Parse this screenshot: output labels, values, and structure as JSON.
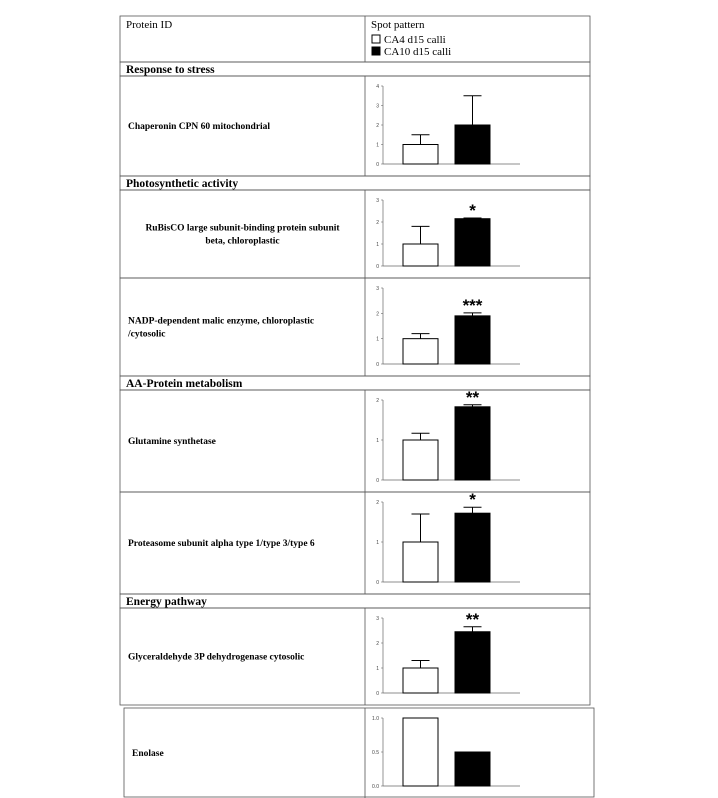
{
  "table": {
    "header": {
      "col1": "Protein ID",
      "col2": "Spot pattern",
      "legend": [
        {
          "label": "CA4 d15 calli",
          "color": "#ffffff"
        },
        {
          "label": "CA10 d15 calli",
          "color": "#000000"
        }
      ]
    },
    "sections": [
      {
        "title": "Response to stress",
        "proteins": [
          {
            "name": "Chaperonin CPN 60 mitochondrial",
            "align": "left",
            "chart": {
              "type": "bar",
              "ylim": [
                0,
                4
              ],
              "yticks": [
                0,
                1,
                2,
                3,
                4
              ],
              "values": [
                1,
                2
              ],
              "errors": [
                0.5,
                1.5
              ]
            }
          }
        ]
      },
      {
        "title": "Photosynthetic activity",
        "proteins": [
          {
            "name": [
              "RuBisCO large subunit-binding protein subunit",
              "beta, chloroplastic"
            ],
            "align": "center",
            "chart": {
              "type": "bar",
              "ylim": [
                0,
                3
              ],
              "yticks": [
                0,
                1,
                2,
                3
              ],
              "values": [
                1,
                2.15
              ],
              "errors": [
                0.8,
                0.03
              ],
              "annotation": "*"
            }
          },
          {
            "name": [
              "NADP-dependent malic enzyme, chloroplastic",
              "/cytosolic"
            ],
            "align": "left",
            "chart": {
              "type": "bar",
              "ylim": [
                0,
                3
              ],
              "yticks": [
                0,
                1,
                2,
                3
              ],
              "values": [
                1,
                1.9
              ],
              "errors": [
                0.2,
                0.12
              ],
              "annotation": "***"
            }
          }
        ]
      },
      {
        "title": "AA-Protein metabolism",
        "proteins": [
          {
            "name": "Glutamine synthetase",
            "align": "left",
            "chart": {
              "type": "bar",
              "ylim": [
                0,
                2
              ],
              "yticks": [
                0,
                1,
                2
              ],
              "values": [
                1,
                1.83
              ],
              "errors": [
                0.17,
                0.05
              ],
              "annotation": "**"
            }
          },
          {
            "name": "Proteasome subunit alpha type 1/type 3/type 6",
            "align": "left",
            "chart": {
              "type": "bar",
              "ylim": [
                0,
                2
              ],
              "yticks": [
                0,
                1,
                2
              ],
              "values": [
                1,
                1.72
              ],
              "errors": [
                0.7,
                0.15
              ],
              "annotation": "*"
            }
          }
        ]
      },
      {
        "title": "Energy pathway",
        "proteins": [
          {
            "name": "Glyceraldehyde 3P dehydrogenase cytosolic",
            "align": "left",
            "chart": {
              "type": "bar",
              "ylim": [
                0,
                3
              ],
              "yticks": [
                0,
                1,
                2,
                3
              ],
              "values": [
                1,
                2.45
              ],
              "errors": [
                0.3,
                0.2
              ],
              "annotation": "**"
            }
          },
          {
            "name": "Enolase",
            "align": "left",
            "chart": {
              "type": "bar",
              "ylim": [
                0,
                1
              ],
              "yticks": [
                {
                  "value": 0,
                  "label": "0.0"
                },
                {
                  "value": 0.5,
                  "label": "0.5"
                },
                {
                  "value": 1,
                  "label": "1.0"
                }
              ],
              "values": [
                1,
                0.5
              ]
            }
          }
        ]
      }
    ]
  }
}
